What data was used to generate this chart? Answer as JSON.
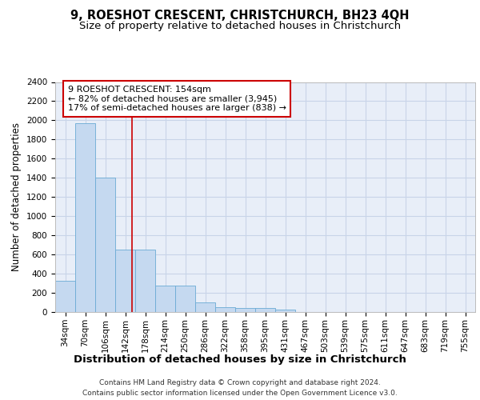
{
  "title": "9, ROESHOT CRESCENT, CHRISTCHURCH, BH23 4QH",
  "subtitle": "Size of property relative to detached houses in Christchurch",
  "xlabel": "Distribution of detached houses by size in Christchurch",
  "ylabel": "Number of detached properties",
  "categories": [
    "34sqm",
    "70sqm",
    "106sqm",
    "142sqm",
    "178sqm",
    "214sqm",
    "250sqm",
    "286sqm",
    "322sqm",
    "358sqm",
    "395sqm",
    "431sqm",
    "467sqm",
    "503sqm",
    "539sqm",
    "575sqm",
    "611sqm",
    "647sqm",
    "683sqm",
    "719sqm",
    "755sqm"
  ],
  "values": [
    325,
    1970,
    1400,
    655,
    655,
    275,
    275,
    100,
    50,
    45,
    40,
    25,
    0,
    0,
    0,
    0,
    0,
    0,
    0,
    0,
    0
  ],
  "bar_color": "#c5d9f0",
  "bar_edge_color": "#6aaad4",
  "grid_color": "#c8d4e8",
  "bg_color": "#e8eef8",
  "annotation_line1": "9 ROESHOT CRESCENT: 154sqm",
  "annotation_line2": "← 82% of detached houses are smaller (3,945)",
  "annotation_line3": "17% of semi-detached houses are larger (838) →",
  "annotation_box_color": "#ffffff",
  "annotation_border_color": "#cc0000",
  "footer_line1": "Contains HM Land Registry data © Crown copyright and database right 2024.",
  "footer_line2": "Contains public sector information licensed under the Open Government Licence v3.0.",
  "ylim": [
    0,
    2400
  ],
  "yticks": [
    0,
    200,
    400,
    600,
    800,
    1000,
    1200,
    1400,
    1600,
    1800,
    2000,
    2200,
    2400
  ],
  "title_fontsize": 10.5,
  "subtitle_fontsize": 9.5,
  "ylabel_fontsize": 8.5,
  "xlabel_fontsize": 9.5,
  "tick_fontsize": 7.5,
  "annotation_fontsize": 8.0,
  "footer_fontsize": 6.5
}
